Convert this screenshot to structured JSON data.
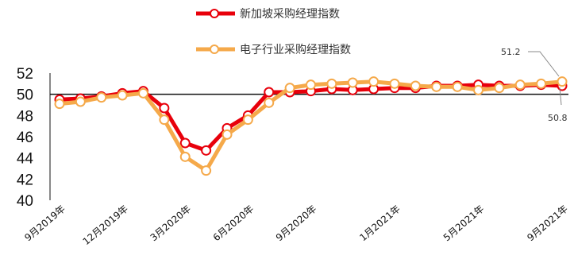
{
  "chart_data": {
    "type": "line",
    "ylim": [
      40,
      52
    ],
    "yticks": [
      "52",
      "50",
      "48",
      "46",
      "44",
      "42",
      "40"
    ],
    "reference_line": 50,
    "x": [
      "9月2019年",
      "10月2019年",
      "11月2019年",
      "12月2019年",
      "1月2020年",
      "2月2020年",
      "3月2020年",
      "4月2020年",
      "5月2020年",
      "6月2020年",
      "7月2020年",
      "8月2020年",
      "9月2020年",
      "10月2020年",
      "11月2020年",
      "12月2020年",
      "1月2021年",
      "2月2021年",
      "3月2021年",
      "4月2021年",
      "5月2021年",
      "6月2021年",
      "7月2021年",
      "8月2021年",
      "9月2021年"
    ],
    "xtick_labels": [
      "9月2019年",
      "12月2019年",
      "3月2020年",
      "6月2020年",
      "9月2020年",
      "1月2021年",
      "5月2021年",
      "9月2021年"
    ],
    "series": [
      {
        "name": "新加坡采购经理指数",
        "color": "#e8000b",
        "values": [
          49.5,
          49.6,
          49.8,
          50.1,
          50.3,
          48.7,
          45.4,
          44.7,
          46.8,
          48.0,
          50.2,
          50.2,
          50.3,
          50.5,
          50.4,
          50.5,
          50.6,
          50.6,
          50.8,
          50.8,
          50.9,
          50.8,
          50.8,
          50.9,
          50.8
        ]
      },
      {
        "name": "电子行业采购经理指数",
        "color": "#f5a94a",
        "values": [
          49.1,
          49.3,
          49.7,
          49.9,
          50.1,
          47.6,
          44.1,
          42.8,
          46.2,
          47.6,
          49.2,
          50.6,
          50.9,
          51.0,
          51.1,
          51.2,
          51.0,
          50.8,
          50.7,
          50.7,
          50.4,
          50.6,
          50.9,
          51.0,
          51.2
        ]
      }
    ],
    "annotations": [
      {
        "text": "51.2",
        "series": "电子行业采购经理指数"
      },
      {
        "text": "50.8",
        "series": "新加坡采购经理指数"
      }
    ]
  }
}
